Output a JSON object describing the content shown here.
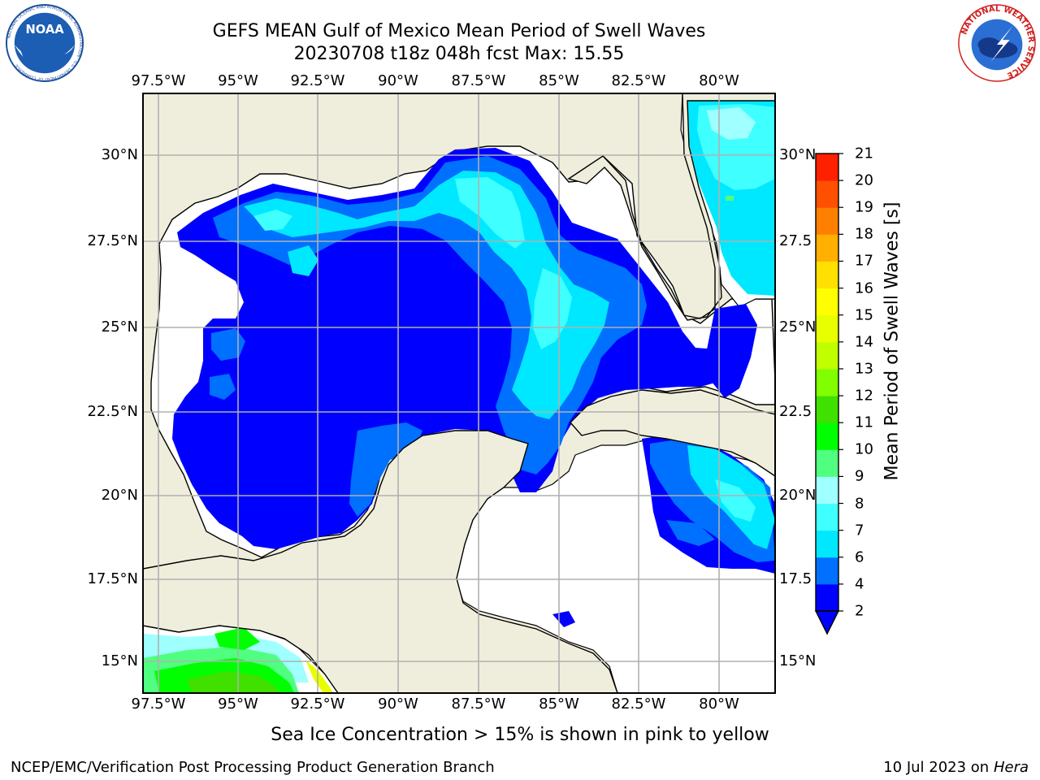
{
  "title_line1": "GEFS MEAN Gulf of Mexico Mean Period of Swell Waves",
  "title_line2": "20230708 t18z 048h fcst   Max: 15.55",
  "logos": {
    "left": "noaa-logo",
    "right": "nws-logo",
    "left_text": "NOAA",
    "left_ring_text": "NATIONAL OCEANIC AND ATMOSPHERIC ADMINISTRATION · U.S. DEPARTMENT OF COMMERCE",
    "right_ring_text": "NATIONAL WEATHER SERVICE"
  },
  "lon_labels": [
    "97.5°W",
    "95°W",
    "92.5°W",
    "90°W",
    "87.5°W",
    "85°W",
    "82.5°W",
    "80°W"
  ],
  "lat_labels_left": [
    "30°N",
    "27.5°N",
    "25°N",
    "22.5°N",
    "20°N",
    "17.5°N",
    "15°N"
  ],
  "lat_labels_right": [
    "30°N",
    "27.5",
    "25°N",
    "22.5",
    "20°N",
    "17.5",
    "15°N"
  ],
  "colorbar": {
    "label": "Mean Period of Swell Waves [s]",
    "ticks": [
      "2",
      "4",
      "6",
      "7",
      "8",
      "9",
      "10",
      "11",
      "12",
      "13",
      "14",
      "15",
      "16",
      "17",
      "18",
      "19",
      "20",
      "21"
    ],
    "colors": [
      "#0000ff",
      "#0070ff",
      "#00e8ff",
      "#40ffff",
      "#a0ffff",
      "#50ff80",
      "#00ff00",
      "#40e000",
      "#80ff00",
      "#c0ff00",
      "#e8ff00",
      "#ffff00",
      "#ffe000",
      "#ffb000",
      "#ff8000",
      "#ff5000",
      "#ff2000",
      "#ff0000"
    ]
  },
  "colors": {
    "land": "#efeedc",
    "ocean_nodata": "#ffffff",
    "grid": "#b0b0b0"
  },
  "subtitle": "Sea Ice Concentration > 15% is shown in pink to yellow",
  "footer_left": "NCEP/EMC/Verification Post Processing Product Generation Branch",
  "footer_date": "10 Jul 2023 on ",
  "footer_host": "Hera"
}
